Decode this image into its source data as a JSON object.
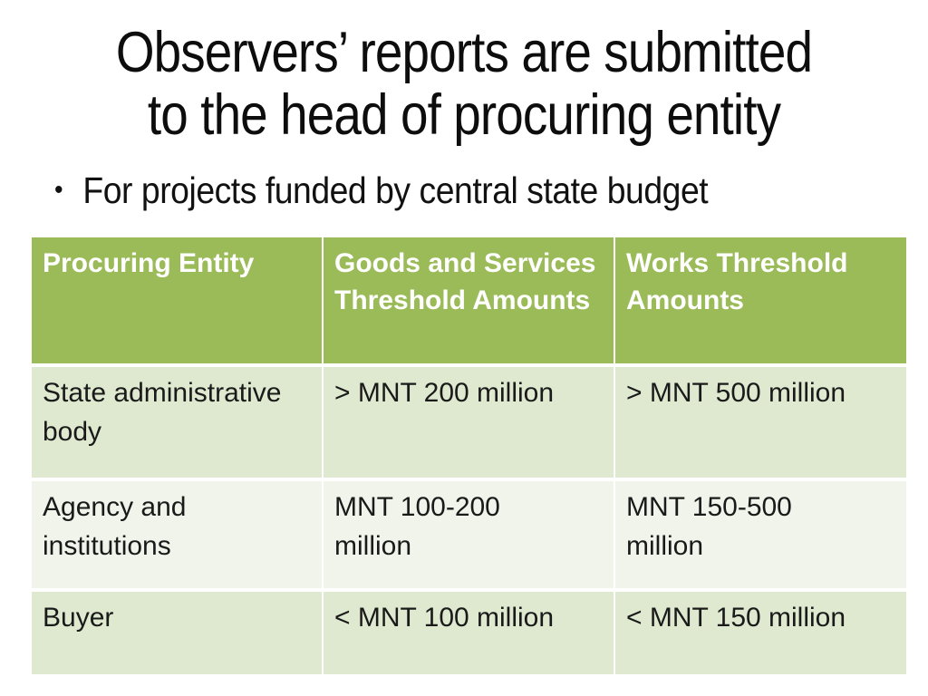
{
  "slide": {
    "title": "Observers’ reports are submitted\nto the head of procuring entity",
    "bullet": {
      "marker": "•",
      "text": "For projects funded by central state budget"
    },
    "table": {
      "headers": [
        "Procuring Entity",
        "Goods and Services\nThreshold Amounts",
        "Works Threshold\nAmounts"
      ],
      "rows": [
        [
          "State administrative\nbody",
          "> MNT 200 million",
          "> MNT 500 million"
        ],
        [
          "Agency and\ninstitutions",
          "MNT 100-200\nmillion",
          "MNT 150-500\nmillion"
        ],
        [
          "Buyer",
          "< MNT 100 million",
          "< MNT 150 million"
        ]
      ]
    },
    "theme": {
      "header_bg": "#9bbb59",
      "header_text": "#ffffff",
      "band_dark": "#dfe9cf",
      "band_light": "#f0f4ea",
      "body_text": "#1a1a1a",
      "slide_bg": "#ffffff"
    }
  }
}
